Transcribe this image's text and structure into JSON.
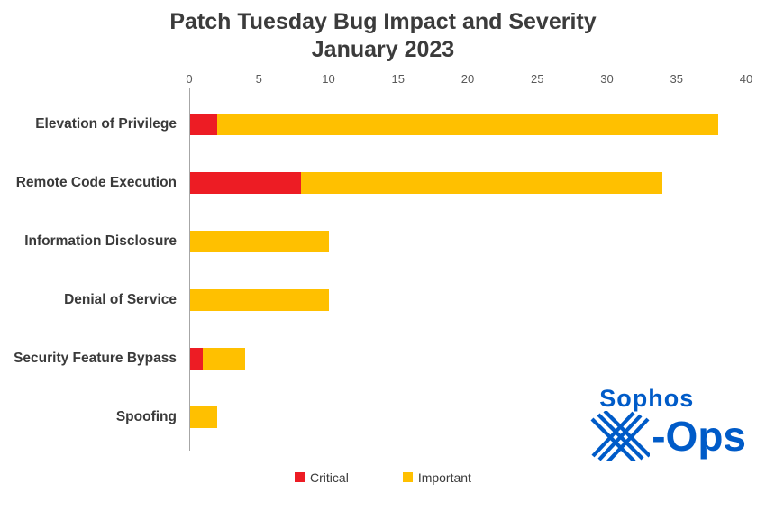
{
  "chart_data": {
    "type": "bar",
    "orientation": "horizontal",
    "stacked": true,
    "title": "Patch Tuesday Bug Impact and Severity",
    "subtitle": "January 2023",
    "categories": [
      "Elevation of Privilege",
      "Remote Code Execution",
      "Information Disclosure",
      "Denial of Service",
      "Security Feature Bypass",
      "Spoofing"
    ],
    "series": [
      {
        "name": "Critical",
        "color": "#ed1c24",
        "values": [
          2,
          8,
          0,
          0,
          1,
          0
        ]
      },
      {
        "name": "Important",
        "color": "#ffc000",
        "values": [
          36,
          26,
          10,
          10,
          3,
          2
        ]
      }
    ],
    "totals": [
      38,
      34,
      10,
      10,
      4,
      2
    ],
    "x_ticks": [
      0,
      5,
      10,
      15,
      20,
      25,
      30,
      35,
      40
    ],
    "xlim": [
      0,
      40
    ],
    "xlabel": "",
    "ylabel": "",
    "grid": false,
    "legend_position": "bottom"
  },
  "legend": {
    "critical_label": "Critical",
    "important_label": "Important"
  },
  "logo": {
    "brand": "Sophos",
    "product_suffix": "-Ops",
    "color": "#005bc8"
  },
  "colors": {
    "critical": "#ed1c24",
    "important": "#ffc000",
    "title_text": "#3b3b3b",
    "axis_text": "#595959",
    "axis_line": "#a6a6a6",
    "logo_blue": "#005bc8"
  }
}
